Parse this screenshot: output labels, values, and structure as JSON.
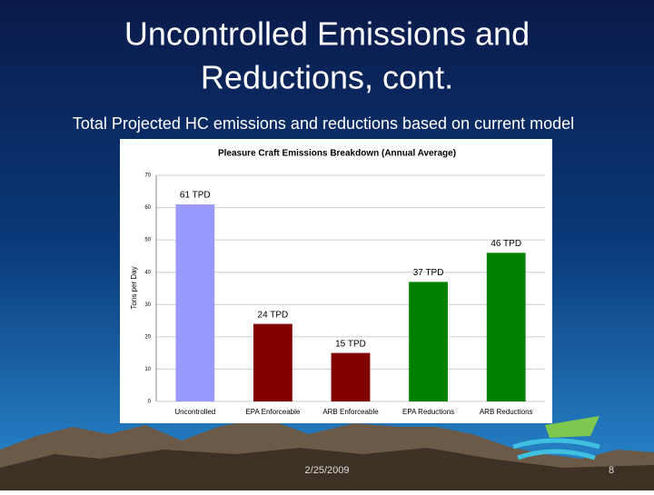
{
  "slide": {
    "title_lines": [
      "Uncontrolled Emissions and",
      "Reductions, cont."
    ],
    "subtitle": "Total Projected HC emissions and reductions based on current model",
    "date": "2/25/2009",
    "page_number": "8"
  },
  "chart_data": {
    "type": "bar",
    "title": "Pleasure Craft Emissions Breakdown (Annual Average)",
    "y_label": "Tons per Day",
    "categories": [
      "Uncontrolled",
      "EPA Enforceable",
      "ARB Enforceable",
      "EPA Reductions",
      "ARB Reductions"
    ],
    "values": [
      61,
      24,
      15,
      37,
      46
    ],
    "value_labels": [
      "61 TPD",
      "24 TPD",
      "15 TPD",
      "37 TPD",
      "46 TPD"
    ],
    "colors": [
      "#9999ff",
      "#800000",
      "#800000",
      "#008000",
      "#008000"
    ],
    "ylim": [
      0,
      70
    ],
    "yticks": [
      0,
      10,
      20,
      30,
      40,
      50,
      60,
      70
    ],
    "grid": true
  }
}
